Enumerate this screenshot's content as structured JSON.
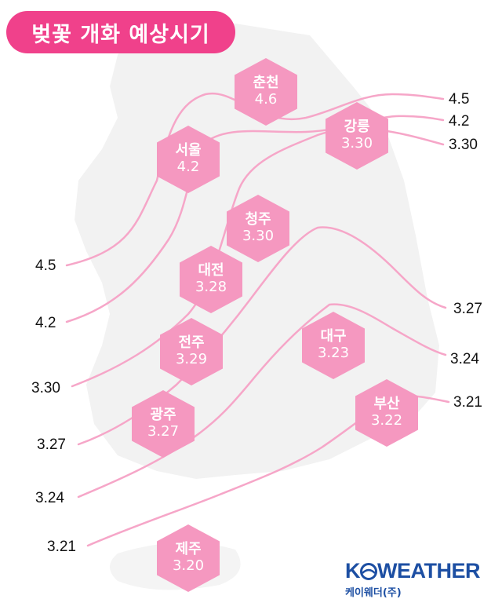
{
  "title": "벚꽃 개화 예상시기",
  "colors": {
    "accent": "#f0418b",
    "hex_fill": "#f598c0",
    "line": "#f6a6c8",
    "map": "#f2f2f2",
    "logo": "#1d4fa3"
  },
  "cities": [
    {
      "id": "chuncheon",
      "name": "춘천",
      "date": "4.6"
    },
    {
      "id": "seoul",
      "name": "서울",
      "date": "4.2"
    },
    {
      "id": "gangneung",
      "name": "강릉",
      "date": "3.30"
    },
    {
      "id": "cheongju",
      "name": "청주",
      "date": "3.30"
    },
    {
      "id": "daejeon",
      "name": "대전",
      "date": "3.28"
    },
    {
      "id": "jeonju",
      "name": "전주",
      "date": "3.29"
    },
    {
      "id": "daegu",
      "name": "대구",
      "date": "3.23"
    },
    {
      "id": "gwangju",
      "name": "광주",
      "date": "3.27"
    },
    {
      "id": "busan",
      "name": "부산",
      "date": "3.22"
    },
    {
      "id": "jeju",
      "name": "제주",
      "date": "3.20"
    }
  ],
  "isolines": [
    {
      "id": "a",
      "value": "4.5"
    },
    {
      "id": "b",
      "value": "4.2"
    },
    {
      "id": "c",
      "value": "3.30"
    },
    {
      "id": "d",
      "value": "3.27"
    },
    {
      "id": "e",
      "value": "3.24"
    },
    {
      "id": "f",
      "value": "3.21"
    }
  ],
  "right_labels": [
    "4.5",
    "4.2",
    "3.30",
    "3.27",
    "3.24",
    "3.21"
  ],
  "left_labels": [
    "4.5",
    "4.2",
    "3.30",
    "3.27",
    "3.24",
    "3.21"
  ],
  "logo": {
    "main_left": "K",
    "main_right": "WEATHER",
    "mark": "logo-mark-icon",
    "sub": "케이웨더(주)"
  }
}
